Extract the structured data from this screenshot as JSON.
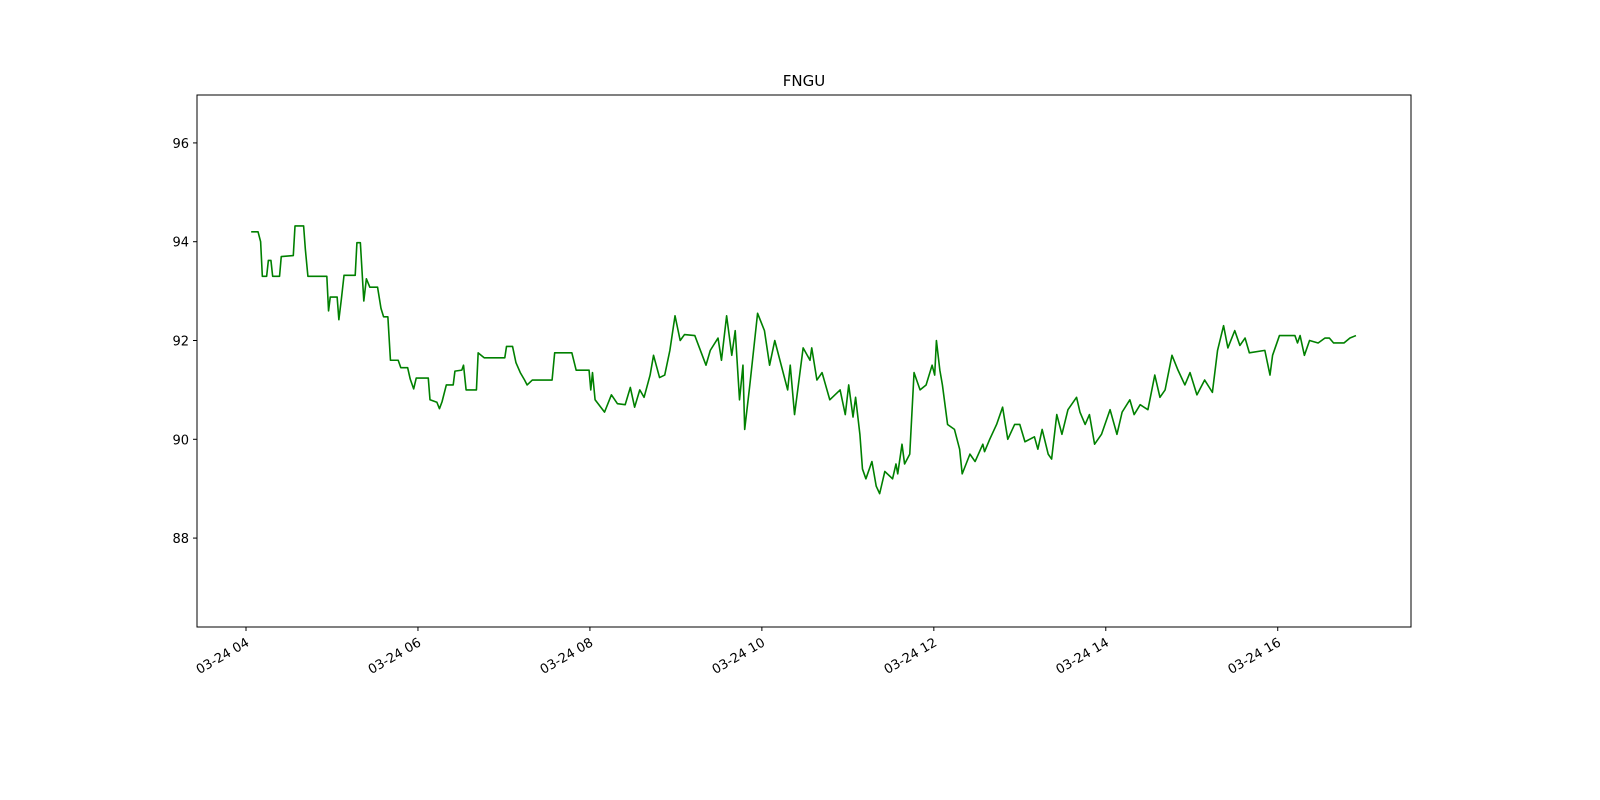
{
  "chart_data": {
    "type": "line",
    "title": "FNGU",
    "color": "#008000",
    "x": [
      4.06,
      4.14,
      4.17,
      4.19,
      4.24,
      4.26,
      4.29,
      4.31,
      4.39,
      4.41,
      4.55,
      4.57,
      4.67,
      4.69,
      4.72,
      4.94,
      4.96,
      4.98,
      5.06,
      5.08,
      5.11,
      5.14,
      5.27,
      5.29,
      5.33,
      5.37,
      5.4,
      5.44,
      5.53,
      5.57,
      5.6,
      5.65,
      5.68,
      5.77,
      5.8,
      5.88,
      5.91,
      5.95,
      5.98,
      6.12,
      6.14,
      6.22,
      6.25,
      6.28,
      6.33,
      6.41,
      6.43,
      6.51,
      6.53,
      6.56,
      6.68,
      6.7,
      6.77,
      7.01,
      7.03,
      7.1,
      7.14,
      7.19,
      7.24,
      7.27,
      7.33,
      7.56,
      7.59,
      7.79,
      7.84,
      7.99,
      8.01,
      8.03,
      8.06,
      8.17,
      8.25,
      8.32,
      8.41,
      8.47,
      8.52,
      8.58,
      8.63,
      8.7,
      8.74,
      8.81,
      8.87,
      8.93,
      8.99,
      9.05,
      9.1,
      9.22,
      9.35,
      9.4,
      9.49,
      9.53,
      9.59,
      9.65,
      9.69,
      9.74,
      9.78,
      9.8,
      9.86,
      9.95,
      10.03,
      10.09,
      10.15,
      10.3,
      10.33,
      10.38,
      10.48,
      10.56,
      10.58,
      10.64,
      10.7,
      10.79,
      10.91,
      10.97,
      11.01,
      11.06,
      11.09,
      11.14,
      11.17,
      11.21,
      11.28,
      11.33,
      11.37,
      11.43,
      11.52,
      11.56,
      11.58,
      11.63,
      11.66,
      11.72,
      11.77,
      11.84,
      11.91,
      11.98,
      12.01,
      12.03,
      12.07,
      12.1,
      12.16,
      12.24,
      12.3,
      12.33,
      12.42,
      12.48,
      12.57,
      12.59,
      12.65,
      12.73,
      12.8,
      12.86,
      12.94,
      13.0,
      13.06,
      13.17,
      13.21,
      13.26,
      13.33,
      13.37,
      13.43,
      13.49,
      13.56,
      13.66,
      13.7,
      13.76,
      13.81,
      13.87,
      13.95,
      14.05,
      14.13,
      14.19,
      14.28,
      14.33,
      14.4,
      14.49,
      14.57,
      14.63,
      14.69,
      14.77,
      14.84,
      14.92,
      14.98,
      15.06,
      15.15,
      15.24,
      15.3,
      15.37,
      15.42,
      15.5,
      15.56,
      15.62,
      15.67,
      15.85,
      15.91,
      15.94,
      16.02,
      16.2,
      16.23,
      16.26,
      16.31,
      16.37,
      16.47,
      16.55,
      16.6,
      16.65,
      16.77,
      16.84,
      16.91
    ],
    "values": [
      94.2,
      94.2,
      94.0,
      93.3,
      93.3,
      93.62,
      93.62,
      93.3,
      93.3,
      93.7,
      93.72,
      94.32,
      94.32,
      93.85,
      93.3,
      93.3,
      92.6,
      92.88,
      92.88,
      92.42,
      92.85,
      93.32,
      93.32,
      93.98,
      93.98,
      92.8,
      93.25,
      93.08,
      93.08,
      92.65,
      92.48,
      92.48,
      91.6,
      91.6,
      91.45,
      91.45,
      91.22,
      91.02,
      91.24,
      91.24,
      90.8,
      90.75,
      90.62,
      90.76,
      91.1,
      91.1,
      91.38,
      91.4,
      91.5,
      91.0,
      91.0,
      91.75,
      91.65,
      91.65,
      91.88,
      91.88,
      91.55,
      91.35,
      91.2,
      91.1,
      91.2,
      91.2,
      91.75,
      91.75,
      91.4,
      91.4,
      91.0,
      91.35,
      90.8,
      90.55,
      90.9,
      90.72,
      90.7,
      91.05,
      90.65,
      91.0,
      90.85,
      91.3,
      91.7,
      91.25,
      91.3,
      91.8,
      92.5,
      92.0,
      92.12,
      92.1,
      91.5,
      91.8,
      92.05,
      91.6,
      92.5,
      91.7,
      92.2,
      90.8,
      91.5,
      90.2,
      91.1,
      92.55,
      92.2,
      91.5,
      92.0,
      91.0,
      91.5,
      90.5,
      91.85,
      91.6,
      91.85,
      91.2,
      91.35,
      90.8,
      91.0,
      90.5,
      91.1,
      90.45,
      90.85,
      90.1,
      89.4,
      89.2,
      89.55,
      89.05,
      88.9,
      89.35,
      89.2,
      89.5,
      89.3,
      89.9,
      89.5,
      89.7,
      91.35,
      91.0,
      91.1,
      91.5,
      91.3,
      92.0,
      91.4,
      91.1,
      90.3,
      90.2,
      89.8,
      89.3,
      89.7,
      89.55,
      89.9,
      89.75,
      90.0,
      90.3,
      90.65,
      90.0,
      90.3,
      90.3,
      89.95,
      90.05,
      89.8,
      90.2,
      89.7,
      89.6,
      90.5,
      90.1,
      90.6,
      90.85,
      90.55,
      90.3,
      90.5,
      89.9,
      90.1,
      90.6,
      90.1,
      90.55,
      90.8,
      90.5,
      90.7,
      90.6,
      91.3,
      90.85,
      91.0,
      91.7,
      91.4,
      91.1,
      91.35,
      90.9,
      91.2,
      90.95,
      91.8,
      92.3,
      91.85,
      92.2,
      91.9,
      92.05,
      91.75,
      91.8,
      91.3,
      91.7,
      92.1,
      92.1,
      91.95,
      92.1,
      91.7,
      92.0,
      91.95,
      92.05,
      92.05,
      91.95,
      91.95,
      92.05,
      92.1
    ],
    "xlim": [
      3.43,
      17.55
    ],
    "ylim": [
      86.2,
      96.97
    ],
    "xticks": [
      {
        "value": 4,
        "label": "03-24 04"
      },
      {
        "value": 6,
        "label": "03-24 06"
      },
      {
        "value": 8,
        "label": "03-24 08"
      },
      {
        "value": 10,
        "label": "03-24 10"
      },
      {
        "value": 12,
        "label": "03-24 12"
      },
      {
        "value": 14,
        "label": "03-24 14"
      },
      {
        "value": 16,
        "label": "03-24 16"
      }
    ],
    "yticks": [
      88,
      90,
      92,
      94,
      96
    ],
    "grid": false
  }
}
